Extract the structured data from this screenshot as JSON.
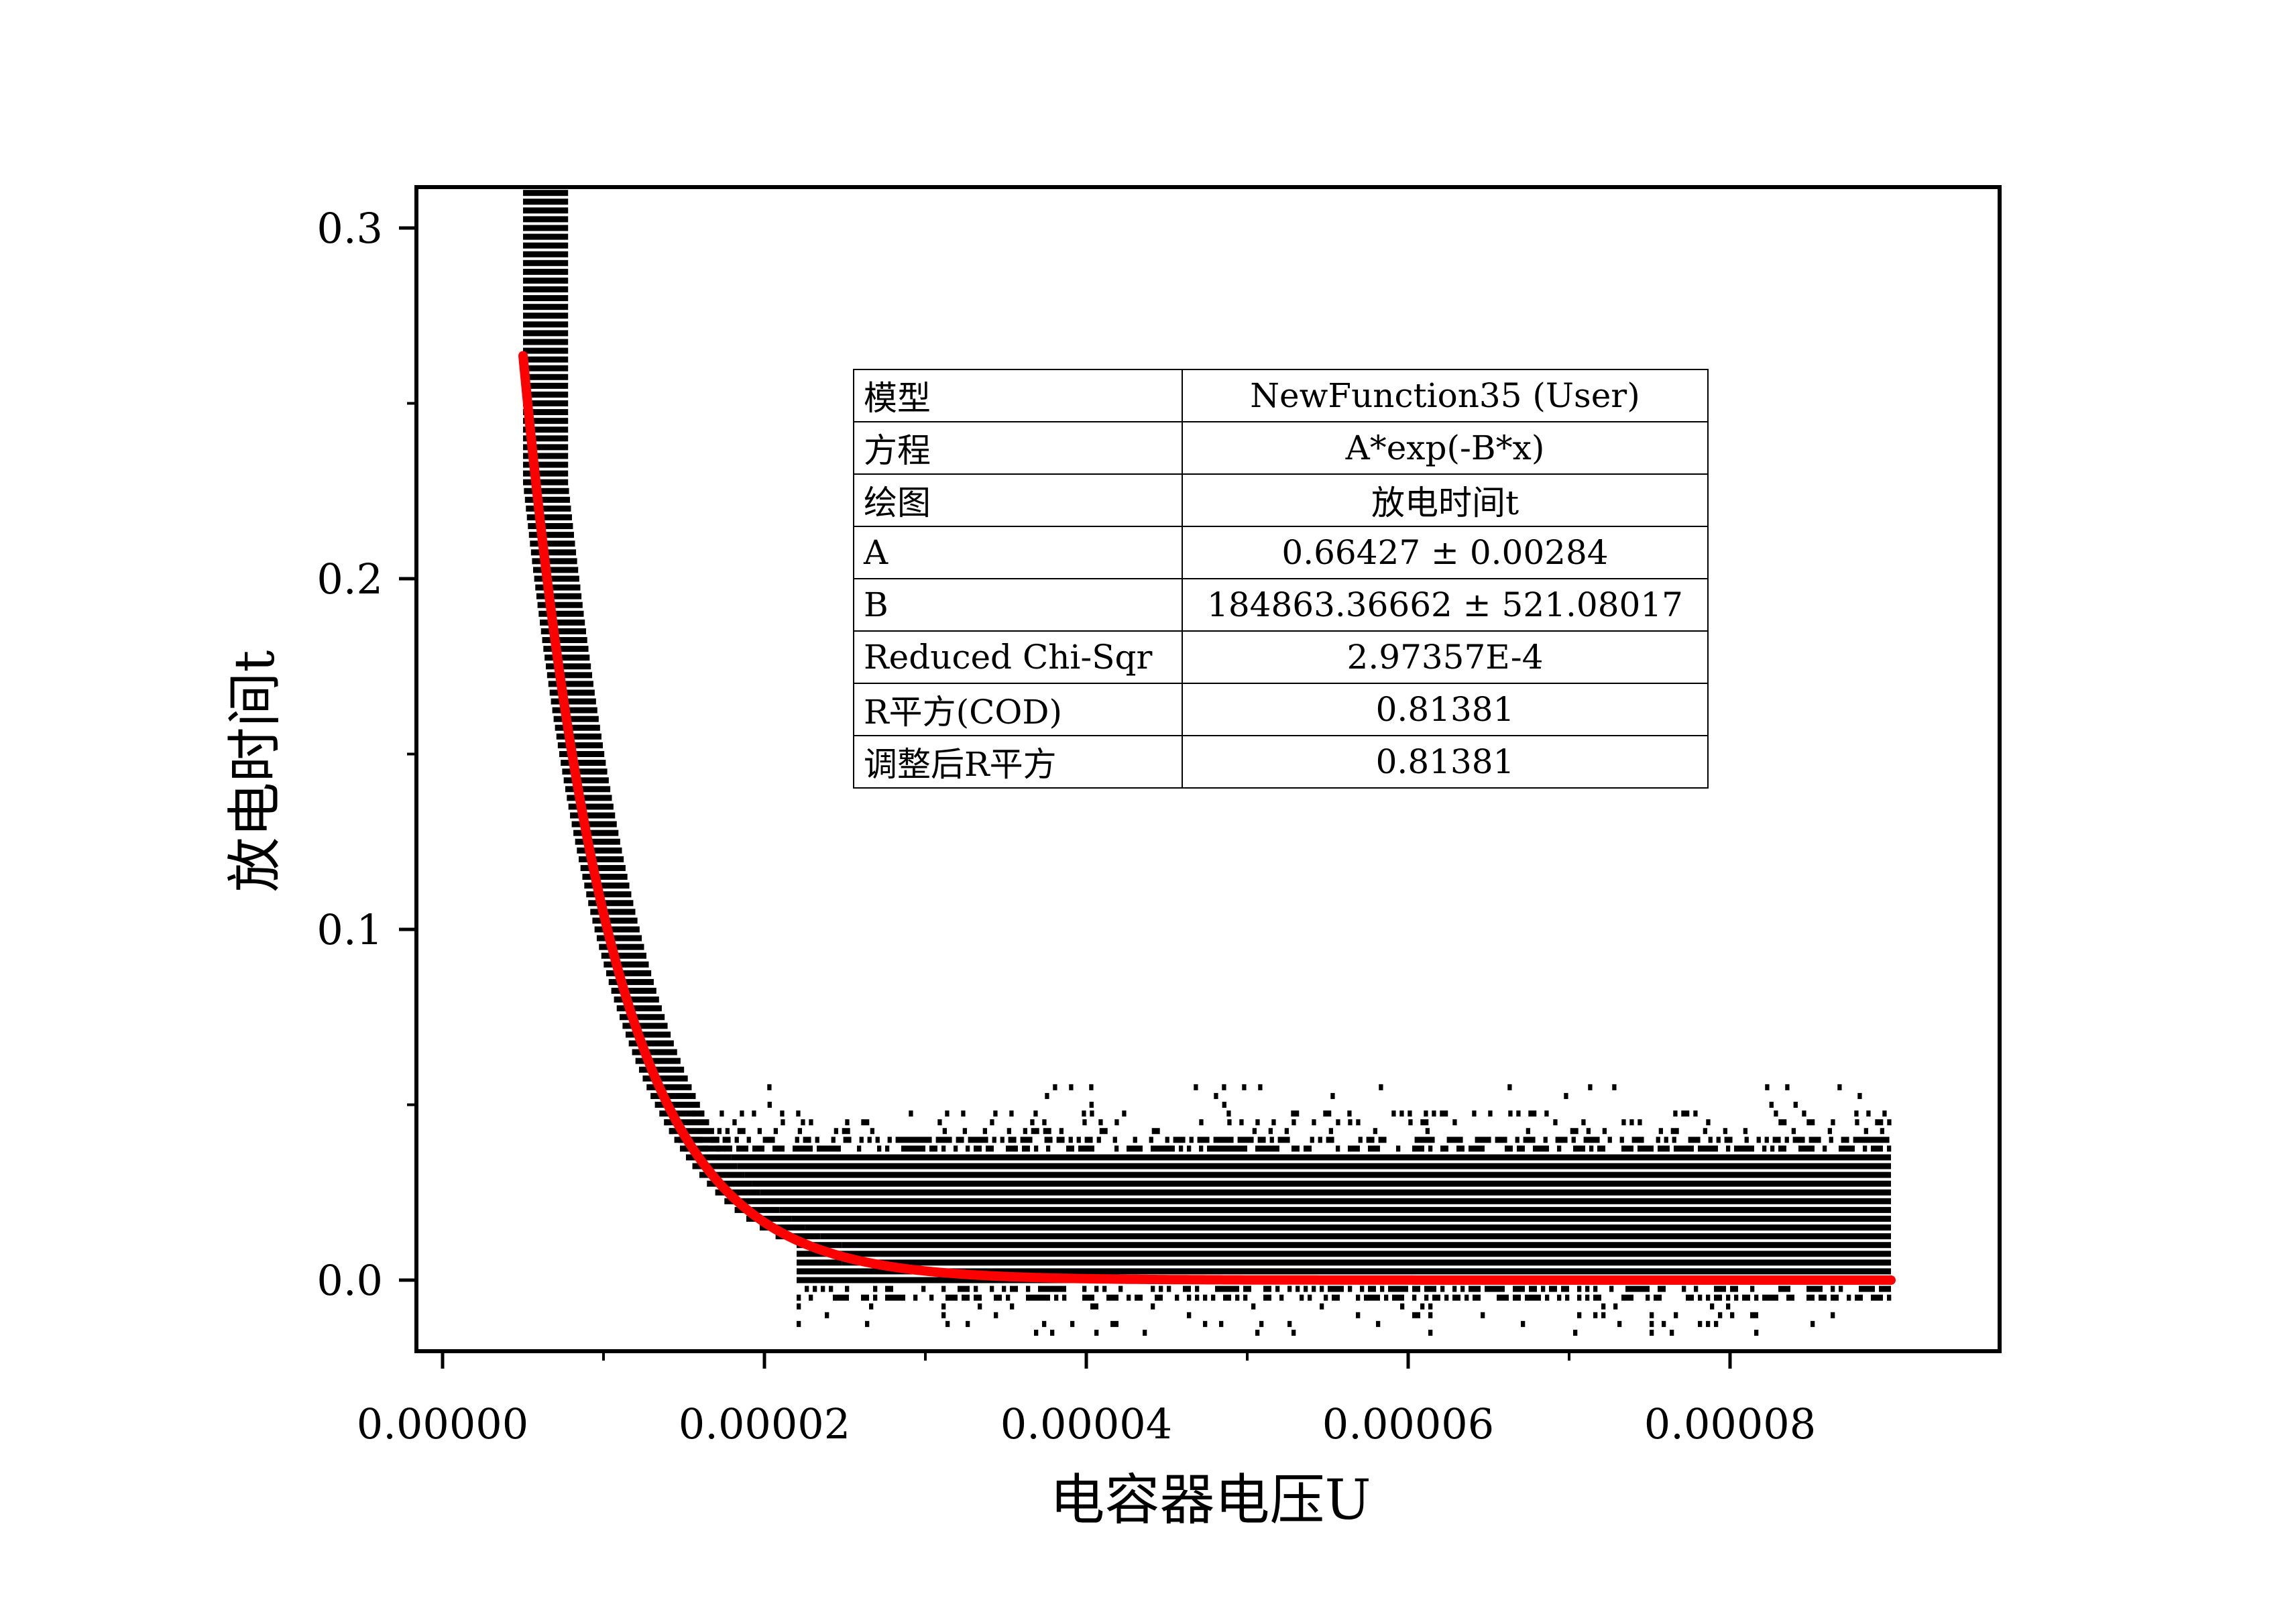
{
  "chart_data": {
    "type": "scatter",
    "title": "",
    "xlabel": "电容器电压U",
    "ylabel": "放电时间t",
    "xlim": [
      -1e-06,
      9.7e-05
    ],
    "ylim": [
      -0.02,
      0.31
    ],
    "xticks": [
      0.0,
      2e-05,
      4e-05,
      6e-05,
      8e-05
    ],
    "xtick_labels": [
      "0.00000",
      "0.00002",
      "0.00004",
      "0.00006",
      "0.00008"
    ],
    "yticks": [
      0.0,
      0.1,
      0.2,
      0.3
    ],
    "ytick_labels": [
      "0.0",
      "0.1",
      "0.2",
      "0.3"
    ],
    "grid": false,
    "colors": {
      "points": "#000000",
      "fit": "#ff0000",
      "frame": "#000000"
    },
    "points_description_range": {
      "x": [
        5e-06,
        9e-05
      ],
      "y": [
        -0.015,
        0.31
      ]
    },
    "fit": {
      "equation": "A*exp(-B*x)",
      "A": 0.66427,
      "B": 184863.36662,
      "x_range": [
        5e-06,
        9e-05
      ]
    }
  },
  "fit_table": [
    {
      "key": "模型",
      "value": "NewFunction35 (User)"
    },
    {
      "key": "方程",
      "value": "A*exp(-B*x)"
    },
    {
      "key": "绘图",
      "value": "放电时间t"
    },
    {
      "key": "A",
      "value": "0.66427 ± 0.00284"
    },
    {
      "key": "B",
      "value": "184863.36662 ± 521.08017"
    },
    {
      "key": "Reduced Chi-Sqr",
      "value": "2.97357E-4"
    },
    {
      "key": "R平方(COD)",
      "value": "0.81381"
    },
    {
      "key": "调整后R平方",
      "value": "0.81381"
    }
  ]
}
